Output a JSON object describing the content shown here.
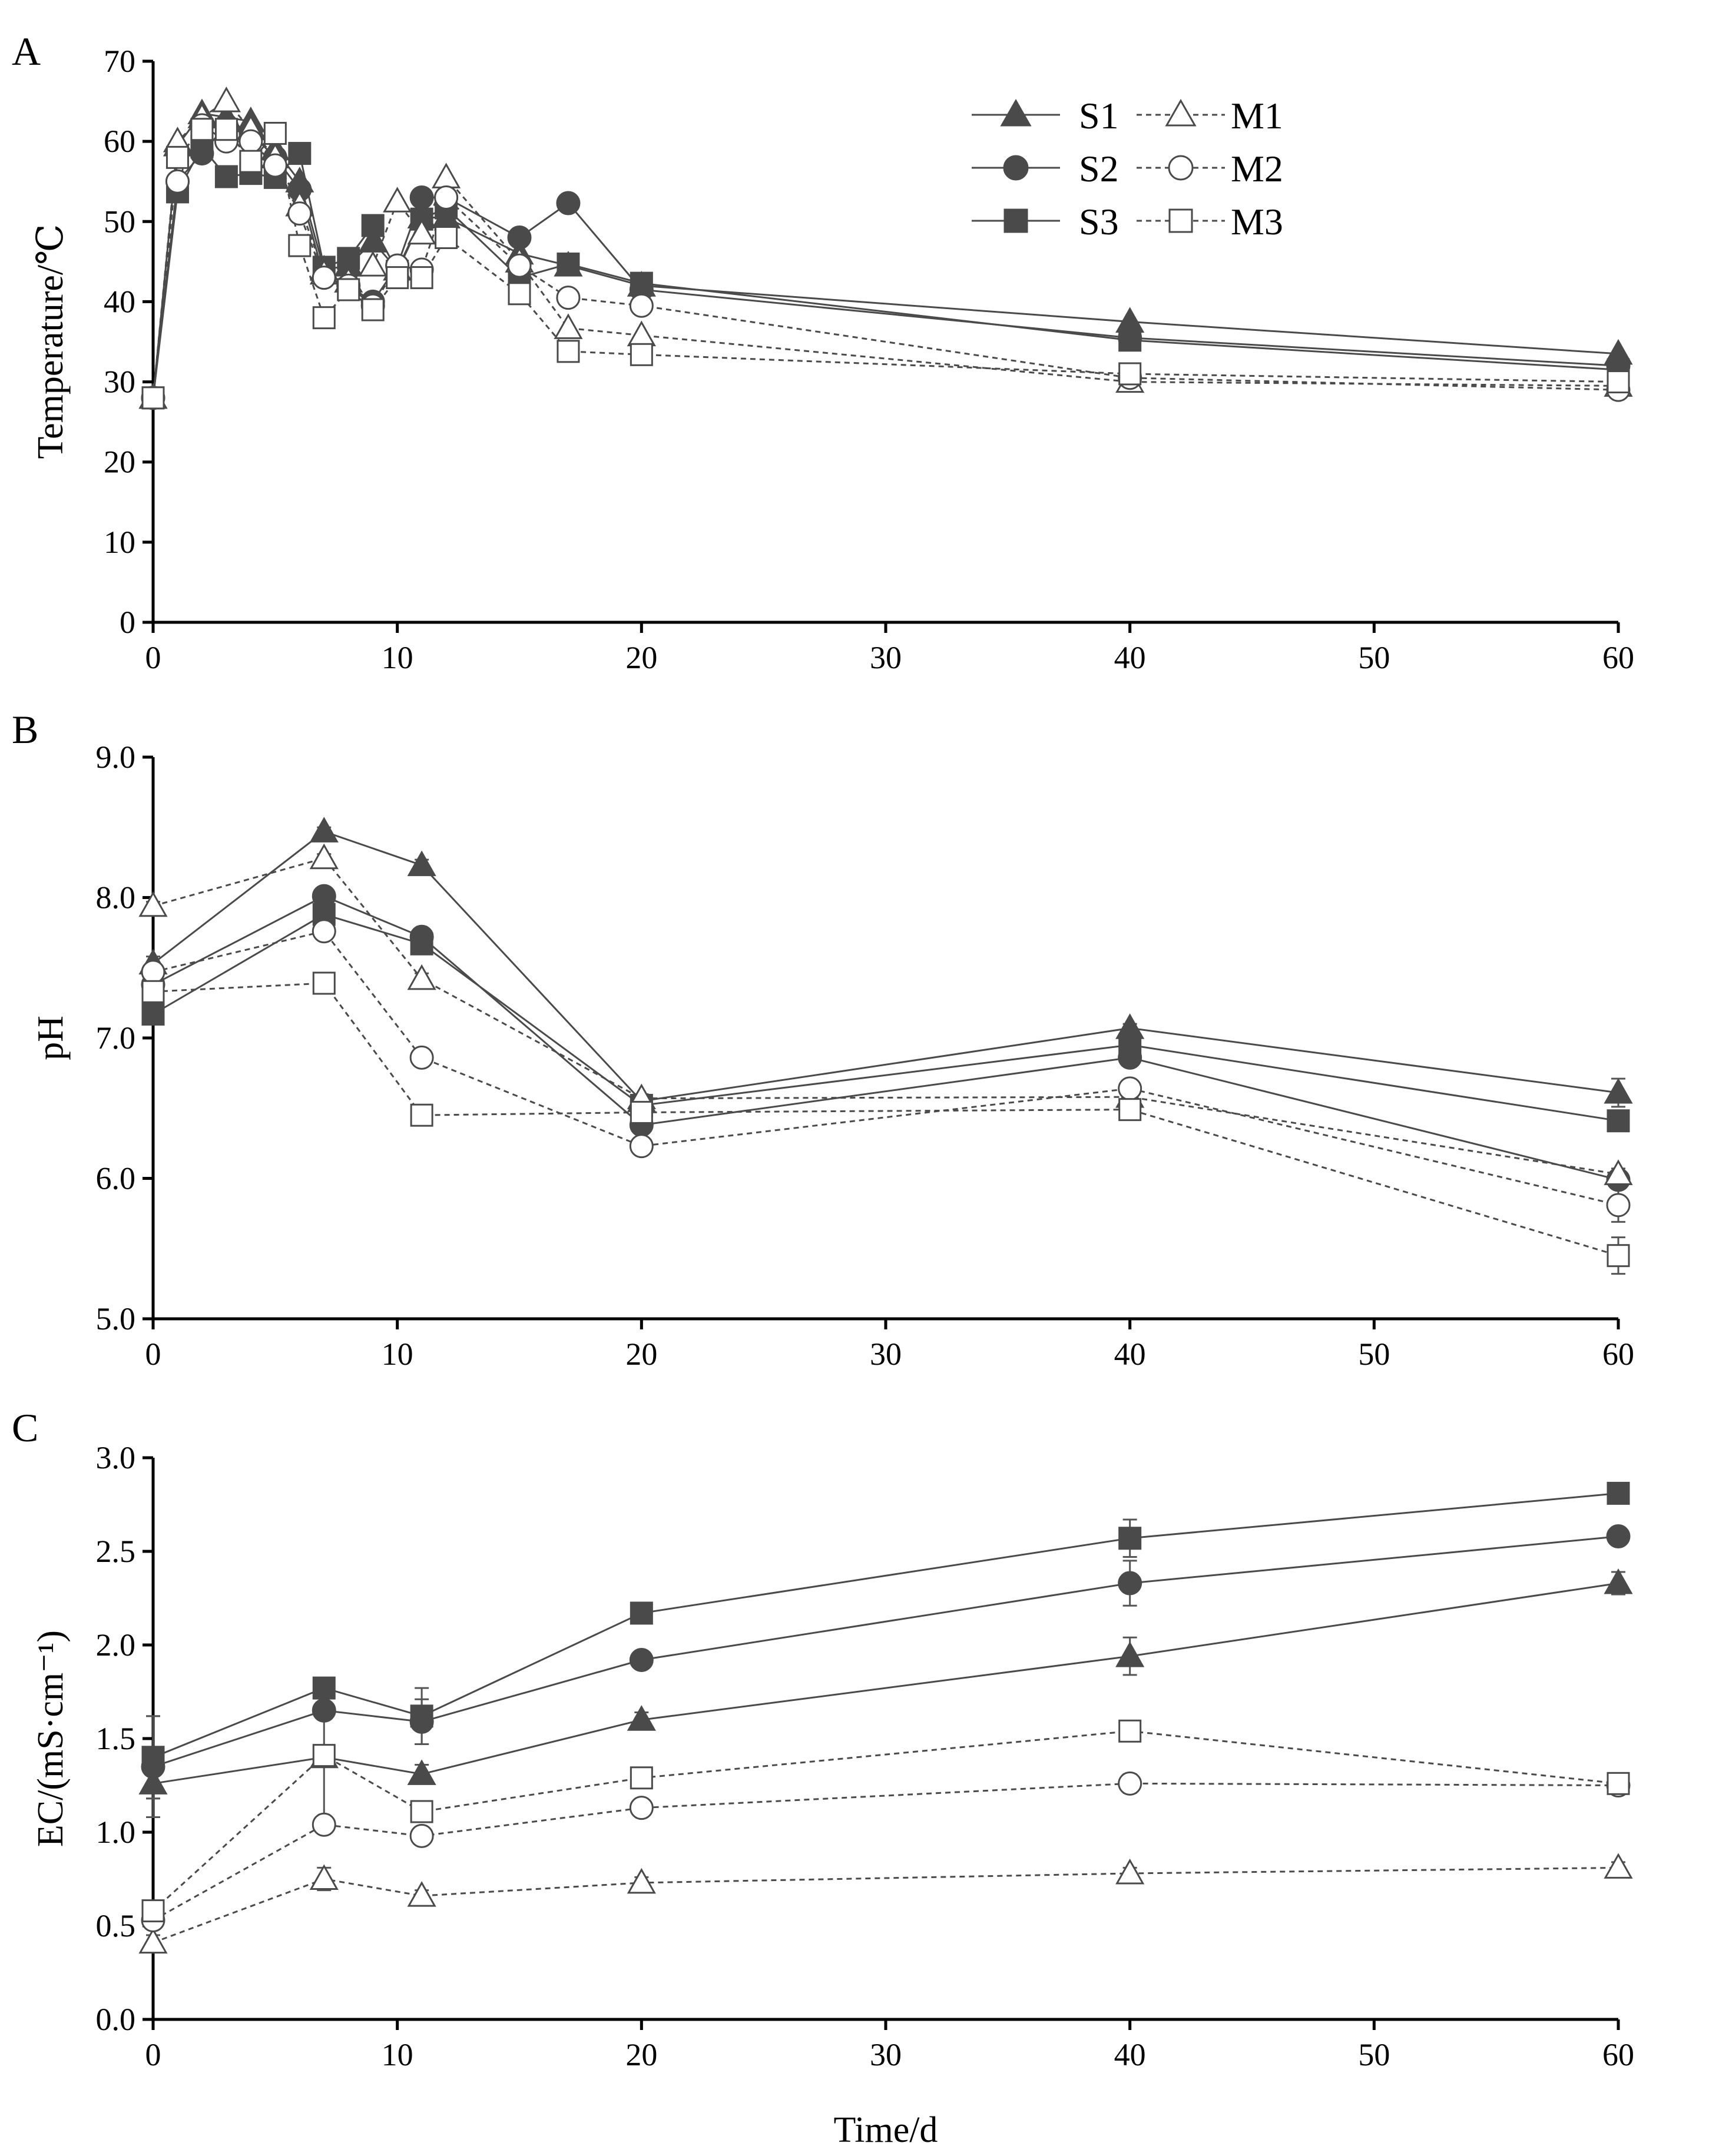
{
  "figure": {
    "xlabel": "Time/d"
  },
  "legend": [
    {
      "series": "S1",
      "label": "S1"
    },
    {
      "series": "S2",
      "label": "S2"
    },
    {
      "series": "S3",
      "label": "S3"
    },
    {
      "series": "M1",
      "label": "M1"
    },
    {
      "series": "M2",
      "label": "M2"
    },
    {
      "series": "M3",
      "label": "M3"
    }
  ],
  "series_style": {
    "S1": {
      "marker": "triangle",
      "fill": "#4a4a4a",
      "line": "solid"
    },
    "S2": {
      "marker": "circle",
      "fill": "#4a4a4a",
      "line": "solid"
    },
    "S3": {
      "marker": "square",
      "fill": "#4a4a4a",
      "line": "solid"
    },
    "M1": {
      "marker": "triangle",
      "fill": "#ffffff",
      "line": "dashed"
    },
    "M2": {
      "marker": "circle",
      "fill": "#ffffff",
      "line": "dashed"
    },
    "M3": {
      "marker": "square",
      "fill": "#ffffff",
      "line": "dashed"
    }
  },
  "chart_data": [
    {
      "id": "A",
      "panel_label": "A",
      "type": "line",
      "title": "",
      "xlabel": "",
      "ylabel": "Temperature/℃",
      "xlim": [
        0,
        60
      ],
      "ylim": [
        0,
        70
      ],
      "xticks": [
        0,
        10,
        20,
        30,
        40,
        50,
        60
      ],
      "yticks": [
        0,
        10,
        20,
        30,
        40,
        50,
        60,
        70
      ],
      "legend": "top-right",
      "series": [
        {
          "name": "S1",
          "x": [
            0,
            1,
            2,
            3,
            4,
            5,
            6,
            7,
            8,
            9,
            10,
            11,
            12,
            15,
            17,
            20,
            40,
            60
          ],
          "y": [
            28,
            59.5,
            63.5,
            63,
            62.5,
            59,
            55,
            44,
            44.5,
            47.5,
            44,
            50.5,
            50.5,
            46,
            44.5,
            42,
            37.5,
            33.5
          ]
        },
        {
          "name": "S2",
          "x": [
            0,
            1,
            2,
            3,
            4,
            5,
            6,
            7,
            8,
            9,
            10,
            11,
            12,
            15,
            17,
            20,
            40,
            60
          ],
          "y": [
            28,
            55,
            58.5,
            62,
            61,
            58,
            54,
            43,
            42,
            40,
            44.5,
            53,
            53,
            48,
            52.3,
            41.5,
            35.5,
            32
          ]
        },
        {
          "name": "S3",
          "x": [
            0,
            1,
            2,
            3,
            4,
            5,
            6,
            7,
            8,
            9,
            10,
            11,
            12,
            15,
            17,
            20,
            40,
            60
          ],
          "y": [
            28,
            53.7,
            59.3,
            55.6,
            56,
            55.5,
            58.5,
            44.3,
            45.4,
            49.5,
            43.8,
            50.3,
            51.7,
            43,
            44.7,
            42.3,
            35.2,
            31.5
          ]
        },
        {
          "name": "M1",
          "x": [
            0,
            1,
            2,
            3,
            4,
            5,
            6,
            7,
            8,
            9,
            10,
            11,
            12,
            15,
            17,
            20,
            40,
            60
          ],
          "y": [
            28,
            60,
            63,
            65,
            61.5,
            58,
            52,
            43.5,
            42.5,
            44.5,
            52.5,
            48.5,
            55.5,
            45,
            36.7,
            35.8,
            30,
            29.5
          ]
        },
        {
          "name": "M2",
          "x": [
            0,
            1,
            2,
            3,
            4,
            5,
            6,
            7,
            8,
            9,
            10,
            11,
            12,
            15,
            17,
            20,
            40,
            60
          ],
          "y": [
            28,
            55,
            62,
            60,
            60,
            57,
            51,
            43,
            42,
            39.5,
            44.5,
            44,
            53,
            44.5,
            40.5,
            39.5,
            30.5,
            29
          ]
        },
        {
          "name": "M3",
          "x": [
            0,
            1,
            2,
            3,
            4,
            5,
            6,
            7,
            8,
            9,
            10,
            11,
            12,
            15,
            17,
            20,
            40,
            60
          ],
          "y": [
            28,
            58,
            61.5,
            61.5,
            57.5,
            61,
            47,
            38,
            41.5,
            39,
            43,
            43,
            48,
            41,
            33.8,
            33.4,
            31,
            30
          ]
        }
      ]
    },
    {
      "id": "B",
      "panel_label": "B",
      "type": "line",
      "title": "",
      "xlabel": "",
      "ylabel": "pH",
      "xlim": [
        0,
        60
      ],
      "ylim": [
        5.0,
        9.0
      ],
      "xticks": [
        0,
        10,
        20,
        30,
        40,
        50,
        60
      ],
      "yticks": [
        "5.0",
        "6.0",
        "7.0",
        "8.0",
        "9.0"
      ],
      "legend": "none",
      "series": [
        {
          "name": "S1",
          "x": [
            0,
            7,
            11,
            20,
            40,
            60
          ],
          "y": [
            7.53,
            8.47,
            8.23,
            6.55,
            7.07,
            6.61
          ],
          "err": [
            0.05,
            0.03,
            0.04,
            0.03,
            0.03,
            0.1
          ]
        },
        {
          "name": "S2",
          "x": [
            0,
            7,
            11,
            20,
            40,
            60
          ],
          "y": [
            7.38,
            8.01,
            7.72,
            6.38,
            6.86,
            5.99
          ],
          "err": [
            0.04,
            0.03,
            0.03,
            0.03,
            0.04,
            0.05
          ]
        },
        {
          "name": "S3",
          "x": [
            0,
            7,
            11,
            20,
            40,
            60
          ],
          "y": [
            7.17,
            7.88,
            7.67,
            6.52,
            6.95,
            6.41
          ],
          "err": [
            0.04,
            0.03,
            0.03,
            0.03,
            0.03,
            0.04
          ]
        },
        {
          "name": "M1",
          "x": [
            0,
            7,
            11,
            20,
            40,
            60
          ],
          "y": [
            7.94,
            8.28,
            7.42,
            6.57,
            6.58,
            6.03
          ],
          "err": [
            0.03,
            0.03,
            0.04,
            0.03,
            0.03,
            0.04
          ]
        },
        {
          "name": "M2",
          "x": [
            0,
            7,
            11,
            20,
            40,
            60
          ],
          "y": [
            7.47,
            7.76,
            6.86,
            6.23,
            6.64,
            5.81
          ],
          "err": [
            0.03,
            0.03,
            0.05,
            0.04,
            0.05,
            0.12
          ]
        },
        {
          "name": "M3",
          "x": [
            0,
            7,
            11,
            20,
            40,
            60
          ],
          "y": [
            7.33,
            7.39,
            6.45,
            6.47,
            6.49,
            5.45
          ],
          "err": [
            0.03,
            0.03,
            0.04,
            0.03,
            0.04,
            0.13
          ]
        }
      ]
    },
    {
      "id": "C",
      "panel_label": "C",
      "type": "line",
      "title": "",
      "xlabel": "Time/d",
      "ylabel": "EC/(mS·cm⁻¹)",
      "xlim": [
        0,
        60
      ],
      "ylim": [
        0.0,
        3.0
      ],
      "xticks": [
        0,
        10,
        20,
        30,
        40,
        50,
        60
      ],
      "yticks": [
        "0.0",
        "0.5",
        "1.0",
        "1.5",
        "2.0",
        "2.5",
        "3.0"
      ],
      "legend": "none",
      "series": [
        {
          "name": "S1",
          "x": [
            0,
            7,
            11,
            20,
            40,
            60
          ],
          "y": [
            1.26,
            1.4,
            1.31,
            1.6,
            1.94,
            2.33
          ],
          "err": [
            0.08,
            0.05,
            0.05,
            0.04,
            0.1,
            0.06
          ]
        },
        {
          "name": "S2",
          "x": [
            0,
            7,
            11,
            20,
            40,
            60
          ],
          "y": [
            1.35,
            1.65,
            1.59,
            1.92,
            2.33,
            2.58
          ],
          "err": [
            0.27,
            0.04,
            0.12,
            0.03,
            0.12,
            0.04
          ]
        },
        {
          "name": "S3",
          "x": [
            0,
            7,
            11,
            20,
            40,
            60
          ],
          "y": [
            1.4,
            1.77,
            1.62,
            2.17,
            2.57,
            2.81
          ],
          "err": [
            0.22,
            0.03,
            0.15,
            0.03,
            0.1,
            0.04
          ]
        },
        {
          "name": "M1",
          "x": [
            0,
            7,
            11,
            20,
            40,
            60
          ],
          "y": [
            0.41,
            0.75,
            0.66,
            0.73,
            0.78,
            0.81
          ],
          "err": [
            0.04,
            0.06,
            0.03,
            0.03,
            0.03,
            0.03
          ]
        },
        {
          "name": "M2",
          "x": [
            0,
            7,
            11,
            20,
            40,
            60
          ],
          "y": [
            0.53,
            1.04,
            0.98,
            1.13,
            1.26,
            1.25
          ],
          "err": [
            0.04,
            0.04,
            0.04,
            0.04,
            0.05,
            0.03
          ]
        },
        {
          "name": "M3",
          "x": [
            0,
            7,
            11,
            20,
            40,
            60
          ],
          "y": [
            0.58,
            1.41,
            1.11,
            1.29,
            1.54,
            1.26
          ],
          "err": [
            0.05,
            0.35,
            0.03,
            0.03,
            0.03,
            0.03
          ]
        }
      ]
    }
  ]
}
